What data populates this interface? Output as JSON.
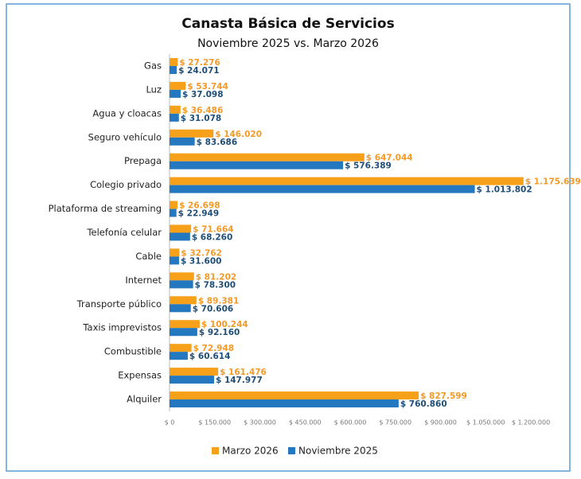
{
  "chart_data": {
    "type": "hbar",
    "title": "Canasta Básica de Servicios",
    "subtitle": "Noviembre  2025 vs. Marzo 2026",
    "categories": [
      "Gas",
      "Luz",
      "Agua y cloacas",
      "Seguro vehículo",
      "Prepaga",
      "Colegio privado",
      "Plataforma de streaming",
      "Telefonía celular",
      "Cable",
      "Internet",
      "Transporte público",
      "Taxis imprevistos",
      "Combustible",
      "Expensas",
      "Alquiler"
    ],
    "series": [
      {
        "name": "Marzo 2026",
        "color": "#f7a11a",
        "label_color": "#f39a28",
        "values": [
          27276,
          53744,
          36486,
          146020,
          647044,
          1175639,
          26698,
          71664,
          32762,
          81202,
          89381,
          100244,
          72948,
          161476,
          827599
        ],
        "value_labels": [
          "$ 27.276",
          "$ 53.744",
          "$ 36.486",
          "$ 146.020",
          "$ 647.044",
          "$ 1.175.639",
          "$ 26.698",
          "$ 71.664",
          "$ 32.762",
          "$ 81.202",
          "$ 89.381",
          "$ 100.244",
          "$ 72.948",
          "$ 161.476",
          "$ 827.599"
        ]
      },
      {
        "name": "Noviembre 2025",
        "color": "#2378bf",
        "label_color": "#1f4e79",
        "values": [
          24071,
          37098,
          31078,
          83686,
          576389,
          1013802,
          22949,
          68260,
          31600,
          78300,
          70606,
          92160,
          60614,
          147977,
          760860
        ],
        "value_labels": [
          "$ 24.071",
          "$ 37.098",
          "$ 31.078",
          "$ 83.686",
          "$ 576.389",
          "$ 1.013.802",
          "$ 22.949",
          "$ 68.260",
          "$ 31.600",
          "$ 78.300",
          "$ 70.606",
          "$ 92.160",
          "$ 60.614",
          "$ 147.977",
          "$ 760.860"
        ]
      }
    ],
    "xlim": [
      0,
      1200000
    ],
    "xticks": [
      {
        "value": 0,
        "label": "$ 0"
      },
      {
        "value": 150000,
        "label": "$ 150.000"
      },
      {
        "value": 300000,
        "label": "$ 300.000"
      },
      {
        "value": 450000,
        "label": "$ 450.000"
      },
      {
        "value": 600000,
        "label": "$ 600.000"
      },
      {
        "value": 750000,
        "label": "$ 750.000"
      },
      {
        "value": 900000,
        "label": "$ 900.000"
      },
      {
        "value": 1050000,
        "label": "$ 1.050.000"
      },
      {
        "value": 1200000,
        "label": "$ 1.200.000"
      }
    ],
    "grid": false,
    "legend": "bottom"
  }
}
